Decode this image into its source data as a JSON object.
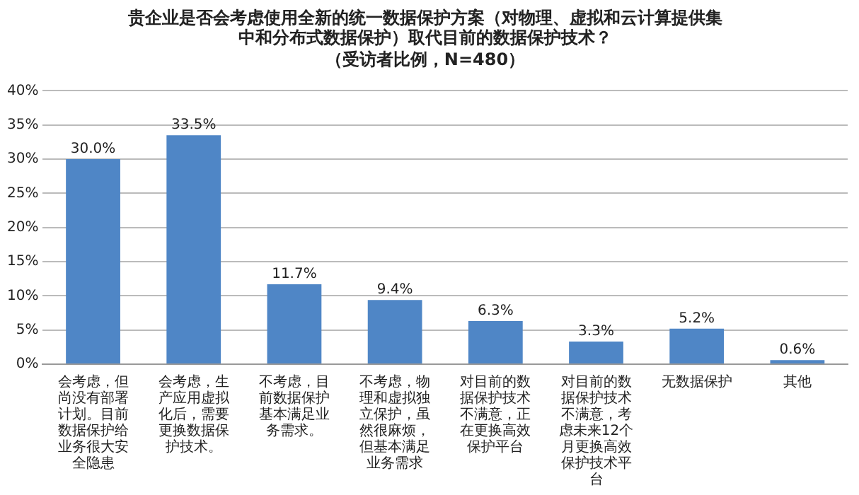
{
  "chart_data": {
    "type": "bar",
    "title": "贵企业是否会考虑使用全新的统一数据保护方案（对物理、虚拟和云计算提供集中和分布式数据保护）取代目前的数据保护技术？",
    "subtitle": "（受访者比例，N=480）",
    "categories": [
      "会考虑，但尚没有部署计划。目前数据保护给业务很大安全隐患",
      "会考虑，生产应用虚拟化后，需要更换数据保护技术。",
      "不考虑，目前数据保护基本满足业务需求。",
      "不考虑，物理和虚拟独立保护，虽然很麻烦，但基本满足业务需求",
      "对目前的数据保护技术不满意，正在更换高效保护平台",
      "对目前的数据保护技术不满意，考虑未来12个月更换高效保护技术平台",
      "无数据保护",
      "其他"
    ],
    "values": [
      30.0,
      33.5,
      11.7,
      9.4,
      6.3,
      3.3,
      5.2,
      0.6
    ],
    "value_labels": [
      "30.0%",
      "33.5%",
      "11.7%",
      "9.4%",
      "6.3%",
      "3.3%",
      "5.2%",
      "0.6%"
    ],
    "color": "#4f86c6",
    "ylim": [
      0,
      40
    ],
    "yticks": [
      {
        "value": 0,
        "label": "0%"
      },
      {
        "value": 5,
        "label": "5%"
      },
      {
        "value": 10,
        "label": "10%"
      },
      {
        "value": 15,
        "label": "15%"
      },
      {
        "value": 20,
        "label": "20%"
      },
      {
        "value": 25,
        "label": "25%"
      },
      {
        "value": 30,
        "label": "30%"
      },
      {
        "value": 35,
        "label": "35%"
      },
      {
        "value": 40,
        "label": "40%"
      }
    ],
    "grid": "y",
    "legend": false
  }
}
